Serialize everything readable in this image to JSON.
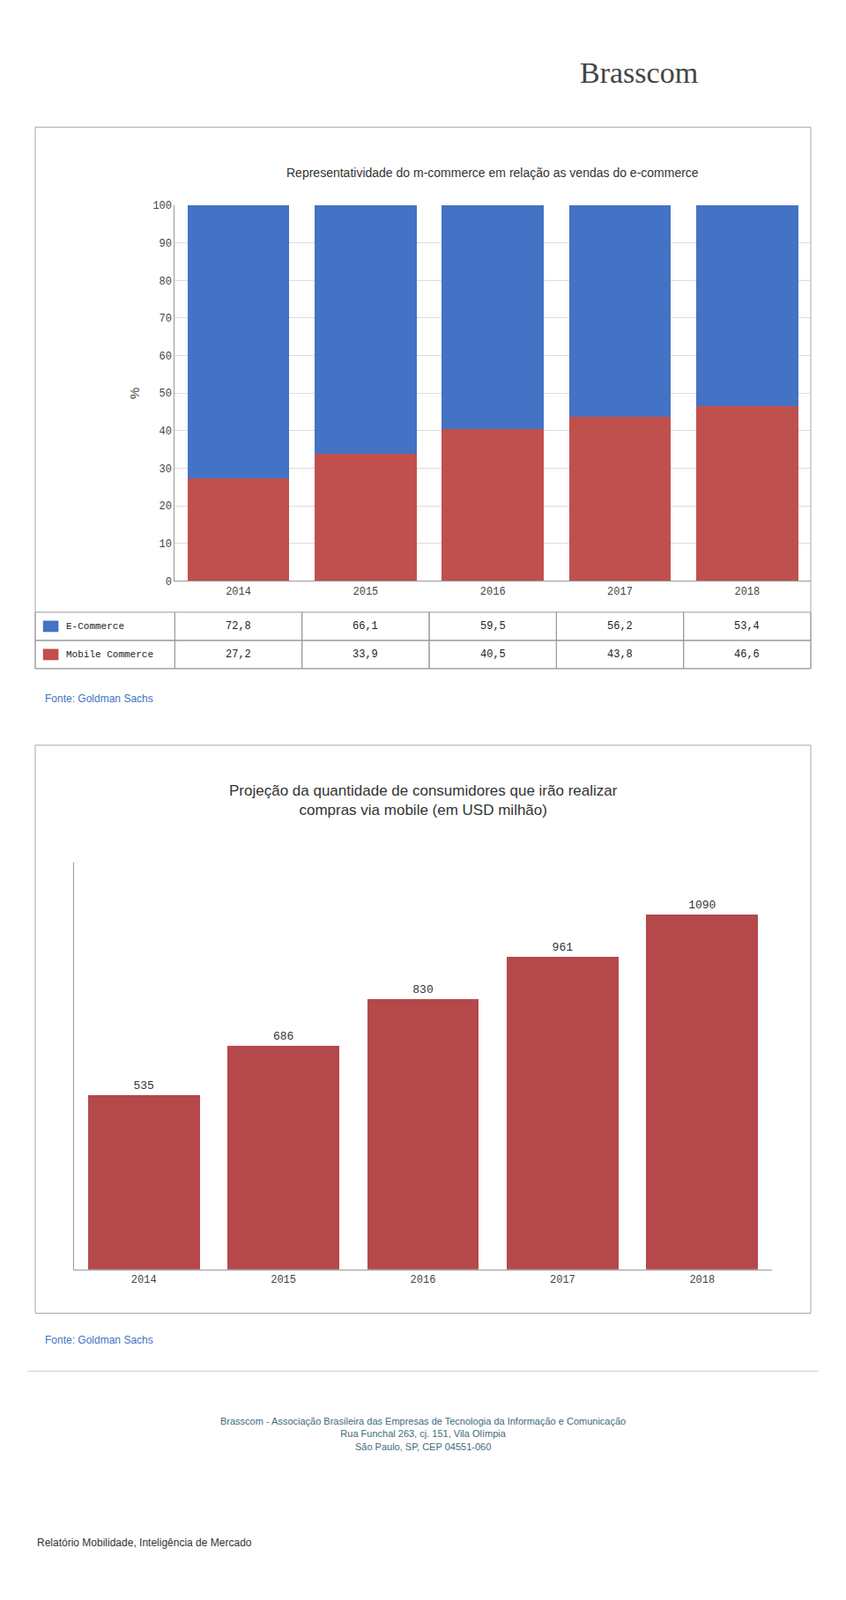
{
  "title": "Brasscom",
  "annotations": [
    "Brasscom - Associação Brasileira das Empresas de Tecnologia da Informação e Comunicação\nRua Funchal 263, cj. 151, Vila Olímpia\nSão Paulo, SP, CEP 04551-060",
    "Relatório Mobilidade, Inteligência de Mercado"
  ],
  "chart_data": [
    {
      "type": "bar",
      "title": "Representatividade do m-commerce em relação as vendas do e-commerce",
      "categories": [
        "2014",
        "2015",
        "2016",
        "2017",
        "2018"
      ],
      "series": [
        {
          "name": "Mobile Commerce",
          "color": "#C0504D",
          "values": [
            27.2,
            33.9,
            40.5,
            43.8,
            46.6
          ],
          "value_labels": [
            "27,2",
            "33,9",
            "40,5",
            "43,8",
            "46,6"
          ]
        },
        {
          "name": "E-Commerce",
          "color": "#4472C4",
          "values": [
            72.8,
            66.1,
            59.5,
            56.2,
            53.4
          ],
          "value_labels": [
            "72,8",
            "66,1",
            "59,5",
            "56,2",
            "53,4"
          ]
        }
      ],
      "stacked": true,
      "data_labels": true,
      "legend": "bottom",
      "y_label": "%",
      "ylim": [
        0,
        100
      ],
      "yticks": [
        0,
        10,
        20,
        30,
        40,
        50,
        60,
        70,
        80,
        90,
        100
      ],
      "grid": true,
      "annotations": [
        "Fonte: Goldman Sachs"
      ]
    },
    {
      "type": "bar",
      "title": "Projeção da quantidade de consumidores que irão realizar\ncompras via mobile (em USD milhão)",
      "categories": [
        "2014",
        "2015",
        "2016",
        "2017",
        "2018"
      ],
      "values": [
        535,
        686,
        830,
        961,
        1090
      ],
      "color": "#B5484B",
      "data_labels": true,
      "ylim": [
        0,
        1250
      ],
      "grid": false,
      "tick_labels": "x",
      "annotations": [
        "Fonte: Goldman Sachs"
      ]
    }
  ]
}
